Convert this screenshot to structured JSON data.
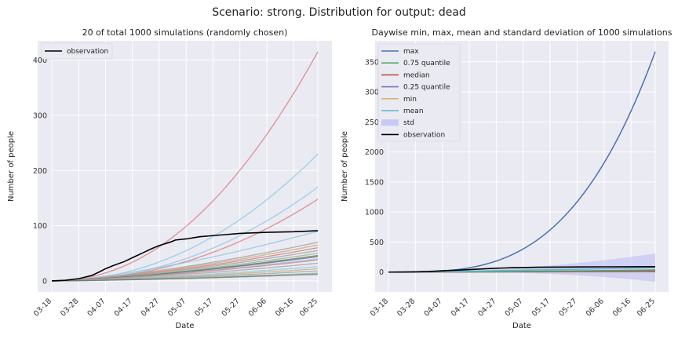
{
  "figure": {
    "suptitle": "Scenario: strong. Distribution for output: dead",
    "date_ticks": [
      "03-18",
      "03-28",
      "04-07",
      "04-17",
      "04-27",
      "05-07",
      "05-17",
      "05-27",
      "06-06",
      "06-16",
      "06-25"
    ]
  },
  "chart_data": [
    {
      "type": "line",
      "title": "20 of total 1000 simulations (randomly chosen)",
      "xlabel": "Date",
      "ylabel": "Number of people",
      "x_range": [
        "03-18",
        "06-25"
      ],
      "ylim": [
        -20,
        435
      ],
      "yticks": [
        0,
        100,
        200,
        300,
        400
      ],
      "grid": true,
      "legend_placement": "top-left",
      "simulation_endpoints": [
        {
          "color": "#d9787a",
          "end": 415
        },
        {
          "color": "#8ec6e0",
          "end": 230
        },
        {
          "color": "#8ec6e0",
          "end": 170
        },
        {
          "color": "#d9787a",
          "end": 148
        },
        {
          "color": "#8ec6e0",
          "end": 90
        },
        {
          "color": "#9aa0a6",
          "end": 70
        },
        {
          "color": "#c9a86b",
          "end": 65
        },
        {
          "color": "#d9787a",
          "end": 60
        },
        {
          "color": "#9aa0a6",
          "end": 55
        },
        {
          "color": "#8fb58a",
          "end": 50
        },
        {
          "color": "#5f7070",
          "end": 46
        },
        {
          "color": "#5f7070",
          "end": 44
        },
        {
          "color": "#8ec6e0",
          "end": 40
        },
        {
          "color": "#d9787a",
          "end": 38
        },
        {
          "color": "#9aa0a6",
          "end": 32
        },
        {
          "color": "#8ec6e0",
          "end": 26
        },
        {
          "color": "#c9a86b",
          "end": 22
        },
        {
          "color": "#9aa0a6",
          "end": 18
        },
        {
          "color": "#8fb58a",
          "end": 14
        },
        {
          "color": "#5f7070",
          "end": 12
        }
      ],
      "observation": {
        "name": "observation",
        "color": "#000000",
        "points": [
          [
            "03-18",
            0
          ],
          [
            "03-23",
            1
          ],
          [
            "03-28",
            4
          ],
          [
            "04-02",
            10
          ],
          [
            "04-05",
            17
          ],
          [
            "04-07",
            22
          ],
          [
            "04-10",
            28
          ],
          [
            "04-14",
            35
          ],
          [
            "04-17",
            42
          ],
          [
            "04-21",
            51
          ],
          [
            "04-24",
            58
          ],
          [
            "04-27",
            64
          ],
          [
            "05-01",
            70
          ],
          [
            "05-03",
            74
          ],
          [
            "05-07",
            76
          ],
          [
            "05-12",
            80
          ],
          [
            "05-17",
            82
          ],
          [
            "05-22",
            84
          ],
          [
            "05-27",
            86
          ],
          [
            "06-06",
            88
          ],
          [
            "06-16",
            89
          ],
          [
            "06-25",
            91
          ]
        ]
      }
    },
    {
      "type": "line",
      "title": "Daywise min, max, mean and standard deviation of 1000 simulations",
      "xlabel": "Date",
      "ylabel": "Number of people",
      "x_range": [
        "03-18",
        "06-25"
      ],
      "ylim": [
        -330,
        3850
      ],
      "yticks": [
        0,
        500,
        1000,
        1500,
        2000,
        2500,
        3000,
        3500
      ],
      "grid": true,
      "legend_placement": "top-left",
      "series": [
        {
          "name": "max",
          "color": "#4c72b0",
          "end": 3670
        },
        {
          "name": "0.75 quantile",
          "color": "#55a868",
          "end": 35
        },
        {
          "name": "median",
          "color": "#c44e52",
          "end": 22
        },
        {
          "name": "0.25 quantile",
          "color": "#8172b2",
          "end": 12
        },
        {
          "name": "min",
          "color": "#ccb974",
          "end": 4
        },
        {
          "name": "mean",
          "color": "#64b5cd",
          "end": 75
        },
        {
          "name": "std",
          "color": "#b9b9f5",
          "band_halfwidth_end": 235
        },
        {
          "name": "observation",
          "color": "#000000",
          "end": 91
        }
      ]
    }
  ]
}
